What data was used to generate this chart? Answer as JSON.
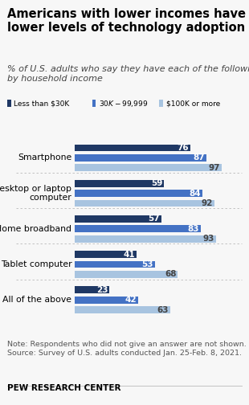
{
  "title": "Americans with lower incomes have\nlower levels of technology adoption",
  "subtitle": "% of U.S. adults who say they have each of the following,\nby household income",
  "categories": [
    "Smartphone",
    "Desktop or laptop\ncomputer",
    "Home broadband",
    "Tablet computer",
    "All of the above"
  ],
  "income_labels": [
    "Less than $30K",
    "$30K-$99,999",
    "$100K or more"
  ],
  "values": [
    [
      76,
      87,
      97
    ],
    [
      59,
      84,
      92
    ],
    [
      57,
      83,
      93
    ],
    [
      41,
      53,
      68
    ],
    [
      23,
      42,
      63
    ]
  ],
  "colors": [
    "#1f3864",
    "#4472c4",
    "#a8c4e0"
  ],
  "note": "Note: Respondents who did not give an answer are not shown.\nSource: Survey of U.S. adults conducted Jan. 25-Feb. 8, 2021.",
  "footer": "PEW RESEARCH CENTER",
  "bg_color": "#f7f7f7",
  "title_fontsize": 10.5,
  "subtitle_fontsize": 8.0,
  "label_fontsize": 7.8,
  "bar_label_fontsize": 7.5,
  "note_fontsize": 6.8,
  "footer_fontsize": 7.5
}
